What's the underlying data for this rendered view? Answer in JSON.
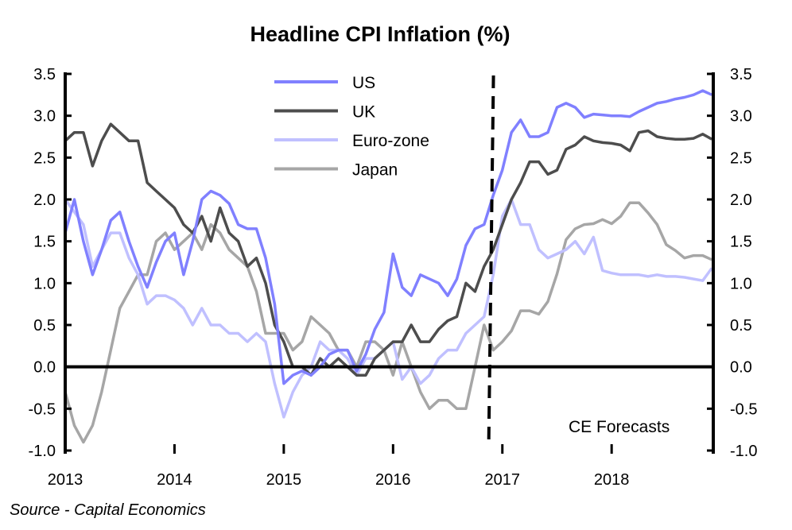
{
  "chart_data": {
    "type": "line",
    "title": "Headline CPI Inflation (%)",
    "xlabel": "",
    "ylabel": "",
    "x_start": "2013-01",
    "frequency": "monthly",
    "x_ticks": [
      "2013",
      "2014",
      "2015",
      "2016",
      "2017",
      "2018"
    ],
    "xlim": [
      "2013-01",
      "2018-12"
    ],
    "ylim": [
      -1.0,
      3.5
    ],
    "y_ticks": [
      "3.5",
      "3.0",
      "2.5",
      "2.0",
      "1.5",
      "1.0",
      "0.5",
      "0.0",
      "-0.5",
      "-1.0"
    ],
    "y_tick_values": [
      3.5,
      3.0,
      2.5,
      2.0,
      1.5,
      1.0,
      0.5,
      0.0,
      -0.5,
      -1.0
    ],
    "grid": false,
    "legend_position": "top-center",
    "forecast_divider": "2016-12",
    "annotation": "CE Forecasts",
    "source": "Source - Capital Economics",
    "series": [
      {
        "name": "US",
        "color": "#8080ff",
        "values": [
          1.6,
          2.0,
          1.5,
          1.1,
          1.4,
          1.75,
          1.85,
          1.5,
          1.2,
          0.95,
          1.25,
          1.5,
          1.6,
          1.1,
          1.5,
          2.0,
          2.1,
          2.05,
          1.95,
          1.7,
          1.65,
          1.65,
          1.3,
          0.75,
          -0.2,
          -0.1,
          -0.05,
          -0.1,
          0.0,
          0.15,
          0.2,
          0.2,
          -0.05,
          0.15,
          0.45,
          0.65,
          1.35,
          0.95,
          0.85,
          1.1,
          1.05,
          1.0,
          0.85,
          1.05,
          1.45,
          1.65,
          1.7,
          2.05,
          2.35,
          2.8,
          2.95,
          2.75,
          2.75,
          2.8,
          3.1,
          3.15,
          3.1,
          2.98,
          3.02,
          3.01,
          3.0,
          3.0,
          2.99,
          3.05,
          3.1,
          3.15,
          3.17,
          3.2,
          3.22,
          3.25,
          3.3,
          3.25
        ]
      },
      {
        "name": "UK",
        "color": "#4d4d4d",
        "values": [
          2.7,
          2.8,
          2.8,
          2.4,
          2.7,
          2.9,
          2.8,
          2.7,
          2.7,
          2.2,
          2.1,
          2.0,
          1.9,
          1.7,
          1.6,
          1.8,
          1.5,
          1.9,
          1.6,
          1.5,
          1.2,
          1.3,
          1.0,
          0.5,
          0.3,
          0.0,
          0.0,
          -0.1,
          0.1,
          0.0,
          0.1,
          0.0,
          -0.1,
          -0.1,
          0.1,
          0.2,
          0.3,
          0.3,
          0.5,
          0.3,
          0.3,
          0.45,
          0.55,
          0.6,
          1.0,
          0.9,
          1.2,
          1.4,
          1.7,
          2.0,
          2.2,
          2.45,
          2.45,
          2.3,
          2.35,
          2.6,
          2.65,
          2.75,
          2.7,
          2.68,
          2.67,
          2.65,
          2.58,
          2.8,
          2.82,
          2.75,
          2.73,
          2.72,
          2.72,
          2.73,
          2.78,
          2.72
        ]
      },
      {
        "name": "Euro-zone",
        "color": "#c0c0ff",
        "values": [
          2.0,
          1.85,
          1.7,
          1.2,
          1.4,
          1.6,
          1.6,
          1.3,
          1.1,
          0.75,
          0.85,
          0.85,
          0.8,
          0.7,
          0.5,
          0.7,
          0.5,
          0.5,
          0.4,
          0.4,
          0.3,
          0.4,
          0.3,
          -0.2,
          -0.6,
          -0.3,
          -0.1,
          0.0,
          0.3,
          0.2,
          0.2,
          0.1,
          -0.1,
          0.1,
          0.1,
          0.2,
          0.3,
          -0.15,
          0.0,
          -0.2,
          -0.1,
          0.1,
          0.2,
          0.2,
          0.4,
          0.5,
          0.6,
          1.1,
          1.8,
          2.0,
          1.7,
          1.7,
          1.4,
          1.3,
          1.35,
          1.4,
          1.5,
          1.35,
          1.55,
          1.15,
          1.12,
          1.1,
          1.1,
          1.1,
          1.08,
          1.1,
          1.08,
          1.08,
          1.07,
          1.05,
          1.03,
          1.18
        ]
      },
      {
        "name": "Japan",
        "color": "#a6a6a6",
        "values": [
          -0.3,
          -0.7,
          -0.9,
          -0.7,
          -0.3,
          0.2,
          0.7,
          0.9,
          1.1,
          1.1,
          1.5,
          1.6,
          1.4,
          1.5,
          1.6,
          1.4,
          1.7,
          1.6,
          1.4,
          1.3,
          1.2,
          0.9,
          0.4,
          0.4,
          0.4,
          0.2,
          0.3,
          0.6,
          0.5,
          0.4,
          0.2,
          0.2,
          0.0,
          0.3,
          0.3,
          0.2,
          -0.1,
          0.3,
          0.0,
          -0.3,
          -0.5,
          -0.4,
          -0.4,
          -0.5,
          -0.5,
          0.0,
          0.5,
          0.2,
          0.3,
          0.43,
          0.67,
          0.67,
          0.63,
          0.78,
          1.11,
          1.52,
          1.65,
          1.7,
          1.71,
          1.76,
          1.71,
          1.8,
          1.96,
          1.96,
          1.84,
          1.7,
          1.46,
          1.39,
          1.3,
          1.33,
          1.33,
          1.28
        ]
      }
    ]
  }
}
